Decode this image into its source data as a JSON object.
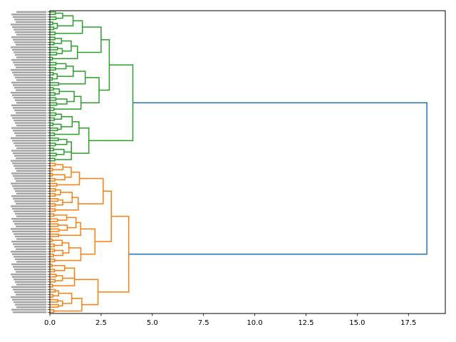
{
  "chart_data": {
    "type": "dendrogram",
    "orientation": "left",
    "title": "",
    "xlabel": "",
    "ylabel": "",
    "xlim": [
      0,
      19.3
    ],
    "xticks": [
      "0.0",
      "2.5",
      "5.0",
      "7.5",
      "10.0",
      "12.5",
      "15.0",
      "17.5"
    ],
    "xtick_values": [
      0,
      2.5,
      5.0,
      7.5,
      10.0,
      12.5,
      15.0,
      17.5
    ],
    "colors": {
      "green": "#2ca02c",
      "orange": "#ff7f0e",
      "root": "#1f77b4"
    },
    "n_leaves": 120,
    "clusters": [
      {
        "name": "",
        "color": "#2ca02c",
        "leaves": 60,
        "merge_height": 4.05
      },
      {
        "name": "",
        "color": "#ff7f0e",
        "leaves": 60,
        "merge_height": 3.85
      }
    ],
    "root_merge_height": 18.4
  }
}
